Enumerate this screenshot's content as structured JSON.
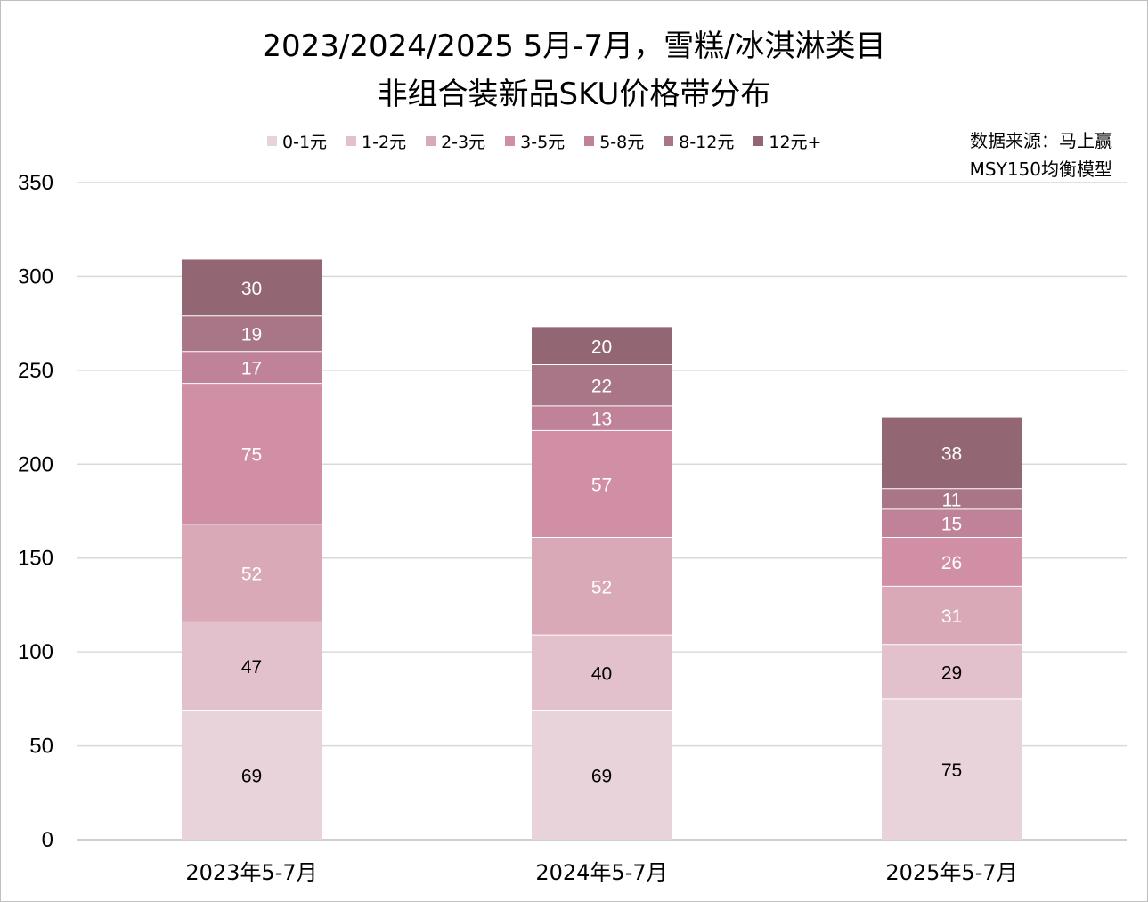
{
  "chart_data": {
    "type": "bar",
    "stacked": true,
    "title_line1": "2023/2024/2025 5月-7月，雪糕/冰淇淋类目",
    "title_line2": "非组合装新品SKU价格带分布",
    "source_line1": "数据来源：马上赢",
    "source_line2": "MSY150均衡模型",
    "categories": [
      "2023年5-7月",
      "2024年5-7月",
      "2025年5-7月"
    ],
    "ylim": [
      0,
      350
    ],
    "yticks": [
      "0",
      "50",
      "100",
      "150",
      "200",
      "250",
      "300",
      "350"
    ],
    "grid": true,
    "legend_position": "top",
    "series": [
      {
        "name": "0-1元",
        "values": [
          69,
          69,
          75
        ],
        "color": "#e8d3da",
        "label_color": "#000000"
      },
      {
        "name": "1-2元",
        "values": [
          47,
          40,
          29
        ],
        "color": "#e3c1cc",
        "label_color": "#000000"
      },
      {
        "name": "2-3元",
        "values": [
          52,
          52,
          31
        ],
        "color": "#d9a9b8",
        "label_color": "#ffffff"
      },
      {
        "name": "3-5元",
        "values": [
          75,
          57,
          26
        ],
        "color": "#d08fa5",
        "label_color": "#ffffff"
      },
      {
        "name": "5-8元",
        "values": [
          17,
          13,
          15
        ],
        "color": "#bf8298",
        "label_color": "#ffffff"
      },
      {
        "name": "8-12元",
        "values": [
          19,
          22,
          11
        ],
        "color": "#a87687",
        "label_color": "#ffffff"
      },
      {
        "name": "12元+",
        "values": [
          30,
          20,
          38
        ],
        "color": "#936674",
        "label_color": "#ffffff"
      }
    ]
  }
}
